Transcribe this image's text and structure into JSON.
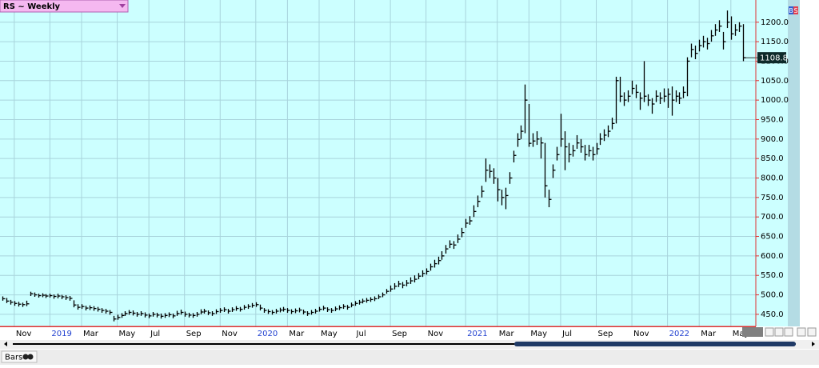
{
  "chart_data": {
    "type": "hlc",
    "title": "RS ~ Weekly",
    "categories": [
      null,
      null,
      null,
      "Nov",
      null,
      null,
      null,
      null,
      null,
      null,
      null,
      null,
      "2019",
      null,
      null,
      null,
      null,
      null,
      null,
      null,
      "Mar",
      null,
      null,
      null,
      null,
      null,
      null,
      null,
      null,
      "May",
      null,
      null,
      null,
      null,
      null,
      null,
      null,
      "Jul",
      null,
      null,
      null,
      null,
      null,
      null,
      null,
      null,
      "Sep",
      null,
      null,
      null,
      null,
      null,
      null,
      null,
      null,
      "Nov",
      null,
      null,
      null,
      null,
      null,
      null,
      null,
      null,
      "2020",
      null,
      null,
      null,
      null,
      null,
      null,
      null,
      "Mar",
      null,
      null,
      null,
      null,
      null,
      null,
      null,
      "May",
      null,
      null,
      null,
      null,
      null,
      null,
      null,
      null,
      "Jul",
      null,
      null,
      null,
      null,
      null,
      null,
      null,
      null,
      "Sep",
      null,
      null,
      null,
      null,
      null,
      null,
      null,
      null,
      "Nov",
      null,
      null,
      null,
      null,
      null,
      null,
      null,
      null,
      null,
      "2021",
      null,
      null,
      null,
      null,
      null,
      null,
      null,
      "Mar",
      null,
      null,
      null,
      null,
      null,
      null,
      null,
      "May",
      null,
      null,
      null,
      null,
      null,
      null,
      null,
      "Jul",
      null,
      null,
      null,
      null,
      null,
      null,
      null,
      null,
      "Sep",
      null,
      null,
      null,
      null,
      null,
      null,
      null,
      null,
      "Nov",
      null,
      null,
      null,
      null,
      null,
      null,
      null,
      null,
      "2022",
      null,
      null,
      null,
      null,
      null,
      null,
      null,
      "Mar",
      null,
      null,
      null,
      null,
      null,
      null,
      null,
      "May",
      null,
      null,
      null
    ],
    "high": [
      496,
      492,
      487,
      484,
      482,
      480,
      485,
      508,
      506,
      503,
      504,
      502,
      503,
      501,
      503,
      500,
      499,
      497,
      486,
      476,
      476,
      472,
      473,
      471,
      469,
      466,
      464,
      461,
      446,
      449,
      453,
      458,
      461,
      460,
      456,
      458,
      455,
      452,
      456,
      454,
      452,
      453,
      455,
      452,
      459,
      462,
      457,
      454,
      453,
      456,
      463,
      464,
      460,
      458,
      463,
      466,
      468,
      464,
      468,
      471,
      469,
      474,
      476,
      479,
      481,
      475,
      466,
      463,
      461,
      464,
      467,
      469,
      466,
      463,
      465,
      467,
      462,
      458,
      461,
      464,
      469,
      472,
      468,
      466,
      470,
      473,
      476,
      474,
      480,
      484,
      487,
      490,
      492,
      494,
      496,
      501,
      506,
      515,
      524,
      530,
      536,
      533,
      538,
      545,
      550,
      556,
      563,
      568,
      580,
      590,
      598,
      612,
      628,
      640,
      638,
      655,
      672,
      695,
      702,
      730,
      755,
      780,
      850,
      835,
      825,
      800,
      770,
      775,
      815,
      870,
      915,
      935,
      1040,
      990,
      915,
      920,
      905,
      890,
      770,
      835,
      880,
      965,
      920,
      890,
      885,
      910,
      900,
      885,
      885,
      880,
      890,
      915,
      925,
      935,
      955,
      1060,
      1060,
      1020,
      1025,
      1050,
      1040,
      1020,
      1100,
      1015,
      1005,
      1025,
      1020,
      1030,
      1030,
      1035,
      1025,
      1020,
      1035,
      1110,
      1145,
      1140,
      1155,
      1165,
      1160,
      1180,
      1195,
      1205,
      1175,
      1230,
      1215,
      1195,
      1200,
      1195
    ],
    "low": [
      485,
      479,
      475,
      472,
      470,
      469,
      471,
      497,
      495,
      493,
      494,
      492,
      493,
      490,
      491,
      489,
      487,
      485,
      468,
      462,
      464,
      460,
      461,
      459,
      457,
      454,
      452,
      449,
      432,
      436,
      441,
      446,
      449,
      447,
      444,
      446,
      442,
      440,
      444,
      442,
      439,
      441,
      443,
      440,
      446,
      449,
      444,
      442,
      441,
      444,
      450,
      452,
      448,
      446,
      451,
      454,
      456,
      452,
      456,
      459,
      457,
      462,
      464,
      467,
      469,
      460,
      454,
      451,
      449,
      452,
      455,
      457,
      454,
      451,
      453,
      455,
      450,
      446,
      449,
      452,
      457,
      460,
      456,
      454,
      458,
      461,
      464,
      462,
      468,
      472,
      475,
      478,
      480,
      482,
      484,
      489,
      494,
      503,
      508,
      514,
      520,
      517,
      522,
      528,
      532,
      540,
      546,
      552,
      562,
      570,
      578,
      590,
      606,
      620,
      618,
      633,
      648,
      672,
      680,
      700,
      725,
      750,
      790,
      800,
      785,
      740,
      730,
      720,
      785,
      840,
      880,
      900,
      915,
      880,
      880,
      885,
      850,
      750,
      725,
      800,
      845,
      880,
      820,
      840,
      855,
      875,
      865,
      845,
      855,
      845,
      860,
      885,
      895,
      905,
      925,
      940,
      995,
      985,
      995,
      1015,
      1005,
      975,
      995,
      985,
      965,
      995,
      990,
      995,
      980,
      960,
      995,
      990,
      1005,
      1010,
      1110,
      1105,
      1125,
      1135,
      1130,
      1150,
      1165,
      1175,
      1130,
      1185,
      1155,
      1165,
      1175,
      1100
    ],
    "close": [
      490,
      484,
      481,
      478,
      476,
      475,
      477,
      503,
      500,
      498,
      499,
      497,
      498,
      496,
      497,
      495,
      493,
      491,
      474,
      468,
      470,
      466,
      467,
      465,
      463,
      460,
      458,
      455,
      438,
      442,
      447,
      452,
      455,
      453,
      450,
      452,
      448,
      446,
      450,
      448,
      445,
      447,
      449,
      446,
      452,
      455,
      450,
      448,
      447,
      450,
      456,
      458,
      454,
      452,
      457,
      460,
      462,
      458,
      462,
      465,
      463,
      468,
      470,
      473,
      475,
      466,
      460,
      457,
      455,
      458,
      461,
      463,
      460,
      457,
      459,
      461,
      456,
      452,
      455,
      458,
      463,
      466,
      462,
      460,
      464,
      467,
      470,
      468,
      474,
      478,
      481,
      484,
      486,
      488,
      490,
      495,
      500,
      509,
      515,
      522,
      528,
      525,
      530,
      536,
      540,
      548,
      555,
      560,
      572,
      580,
      588,
      600,
      618,
      630,
      628,
      643,
      660,
      684,
      690,
      714,
      740,
      766,
      820,
      817,
      800,
      770,
      750,
      755,
      800,
      858,
      899,
      920,
      1000,
      889,
      895,
      900,
      890,
      780,
      745,
      820,
      860,
      900,
      880,
      860,
      870,
      890,
      880,
      860,
      870,
      860,
      875,
      900,
      910,
      920,
      940,
      1050,
      1010,
      1000,
      1010,
      1030,
      1020,
      1005,
      1010,
      1000,
      990,
      1010,
      1005,
      1010,
      1015,
      1000,
      1010,
      1005,
      1020,
      1100,
      1130,
      1120,
      1140,
      1150,
      1145,
      1165,
      1180,
      1190,
      1150,
      1200,
      1170,
      1180,
      1190,
      1108.8
    ],
    "last_value_label": "1108.8",
    "color": "#000000",
    "ylim": [
      419,
      1257
    ],
    "yticks": [
      {
        "value": 450,
        "label": "450.0"
      },
      {
        "value": 500,
        "label": "500.0"
      },
      {
        "value": 550,
        "label": "550.0"
      },
      {
        "value": 600,
        "label": "600.0"
      },
      {
        "value": 650,
        "label": "650.0"
      },
      {
        "value": 700,
        "label": "700.0"
      },
      {
        "value": 750,
        "label": "750.0"
      },
      {
        "value": 800,
        "label": "800.0"
      },
      {
        "value": 850,
        "label": "850.0"
      },
      {
        "value": 900,
        "label": "900.0"
      },
      {
        "value": 950,
        "label": "950.0"
      },
      {
        "value": 1000,
        "label": "1000.0"
      },
      {
        "value": 1050,
        "label": "1050.0"
      },
      {
        "value": 1100,
        "label": "1100.0"
      },
      {
        "value": 1150,
        "label": "1150.0"
      },
      {
        "value": 1200,
        "label": "1200.0"
      }
    ],
    "grid": true
  },
  "toolbar": {
    "mode": "Bars",
    "buy": "B",
    "sell": "S"
  }
}
